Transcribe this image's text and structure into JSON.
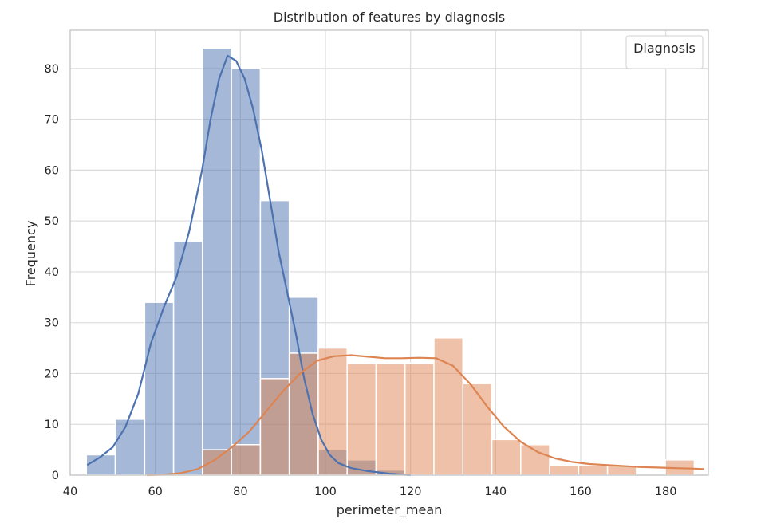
{
  "chart_data": {
    "type": "histogram",
    "title": "Distribution of features by diagnosis",
    "xlabel": "perimeter_mean",
    "ylabel": "Frequency",
    "xlim": [
      40,
      190
    ],
    "ylim": [
      0,
      87.5
    ],
    "xticks": [
      40,
      60,
      80,
      100,
      120,
      140,
      160,
      180
    ],
    "yticks": [
      0,
      10,
      20,
      30,
      40,
      50,
      60,
      70,
      80
    ],
    "grid": true,
    "legend": {
      "title": "Diagnosis",
      "placement": "top-right"
    },
    "colors": {
      "blue": "#4c72b0",
      "orange": "#dd8452"
    },
    "series": [
      {
        "color": "blue",
        "bins": [
          {
            "x0": 43.8,
            "x1": 50.6,
            "count": 4
          },
          {
            "x0": 50.6,
            "x1": 57.5,
            "count": 11
          },
          {
            "x0": 57.5,
            "x1": 64.3,
            "count": 34
          },
          {
            "x0": 64.3,
            "x1": 71.1,
            "count": 46
          },
          {
            "x0": 71.1,
            "x1": 77.9,
            "count": 84
          },
          {
            "x0": 77.9,
            "x1": 84.7,
            "count": 80
          },
          {
            "x0": 84.7,
            "x1": 91.5,
            "count": 54
          },
          {
            "x0": 91.5,
            "x1": 98.3,
            "count": 35
          },
          {
            "x0": 98.3,
            "x1": 105.1,
            "count": 5
          },
          {
            "x0": 105.1,
            "x1": 111.9,
            "count": 3
          },
          {
            "x0": 111.9,
            "x1": 118.7,
            "count": 1
          }
        ],
        "kde": [
          [
            44,
            2
          ],
          [
            47,
            3.5
          ],
          [
            50,
            5.5
          ],
          [
            53,
            9.5
          ],
          [
            56,
            16
          ],
          [
            59,
            26
          ],
          [
            62,
            33
          ],
          [
            65,
            39
          ],
          [
            68,
            48
          ],
          [
            71,
            60
          ],
          [
            73,
            70
          ],
          [
            75,
            78
          ],
          [
            77,
            82.5
          ],
          [
            79,
            81.5
          ],
          [
            81,
            78
          ],
          [
            83,
            72
          ],
          [
            85,
            64
          ],
          [
            87,
            54
          ],
          [
            89,
            44
          ],
          [
            91,
            36
          ],
          [
            93,
            28
          ],
          [
            95,
            19
          ],
          [
            97,
            12
          ],
          [
            99,
            7
          ],
          [
            101,
            4
          ],
          [
            103,
            2.4
          ],
          [
            106,
            1.4
          ],
          [
            110,
            0.8
          ],
          [
            115,
            0.3
          ],
          [
            120,
            0
          ]
        ]
      },
      {
        "color": "orange",
        "bins": [
          {
            "x0": 71.1,
            "x1": 77.9,
            "count": 5
          },
          {
            "x0": 77.9,
            "x1": 84.7,
            "count": 6
          },
          {
            "x0": 84.7,
            "x1": 91.5,
            "count": 19
          },
          {
            "x0": 91.5,
            "x1": 98.3,
            "count": 24
          },
          {
            "x0": 98.3,
            "x1": 105.1,
            "count": 25
          },
          {
            "x0": 105.1,
            "x1": 111.9,
            "count": 22
          },
          {
            "x0": 111.9,
            "x1": 118.7,
            "count": 22
          },
          {
            "x0": 118.7,
            "x1": 125.5,
            "count": 22
          },
          {
            "x0": 125.5,
            "x1": 132.3,
            "count": 27
          },
          {
            "x0": 132.3,
            "x1": 139.1,
            "count": 18
          },
          {
            "x0": 139.1,
            "x1": 145.9,
            "count": 7
          },
          {
            "x0": 145.9,
            "x1": 152.7,
            "count": 6
          },
          {
            "x0": 152.7,
            "x1": 159.5,
            "count": 2
          },
          {
            "x0": 159.5,
            "x1": 166.3,
            "count": 2
          },
          {
            "x0": 166.3,
            "x1": 173.1,
            "count": 2
          },
          {
            "x0": 173.1,
            "x1": 179.9,
            "count": 0
          },
          {
            "x0": 179.9,
            "x1": 186.7,
            "count": 3
          }
        ],
        "kde": [
          [
            58,
            0
          ],
          [
            62,
            0.1
          ],
          [
            66,
            0.4
          ],
          [
            70,
            1.2
          ],
          [
            74,
            3
          ],
          [
            78,
            5.5
          ],
          [
            82,
            8.5
          ],
          [
            86,
            12.5
          ],
          [
            90,
            16.5
          ],
          [
            94,
            20
          ],
          [
            98,
            22.5
          ],
          [
            102,
            23.4
          ],
          [
            106,
            23.6
          ],
          [
            110,
            23.3
          ],
          [
            114,
            23
          ],
          [
            118,
            23
          ],
          [
            122,
            23.1
          ],
          [
            126,
            23
          ],
          [
            130,
            21.5
          ],
          [
            134,
            18
          ],
          [
            138,
            13.5
          ],
          [
            142,
            9.5
          ],
          [
            146,
            6.5
          ],
          [
            150,
            4.5
          ],
          [
            154,
            3.3
          ],
          [
            158,
            2.6
          ],
          [
            162,
            2.2
          ],
          [
            166,
            2
          ],
          [
            170,
            1.8
          ],
          [
            174,
            1.6
          ],
          [
            178,
            1.5
          ],
          [
            182,
            1.4
          ],
          [
            186,
            1.3
          ],
          [
            189,
            1.2
          ]
        ]
      }
    ]
  }
}
